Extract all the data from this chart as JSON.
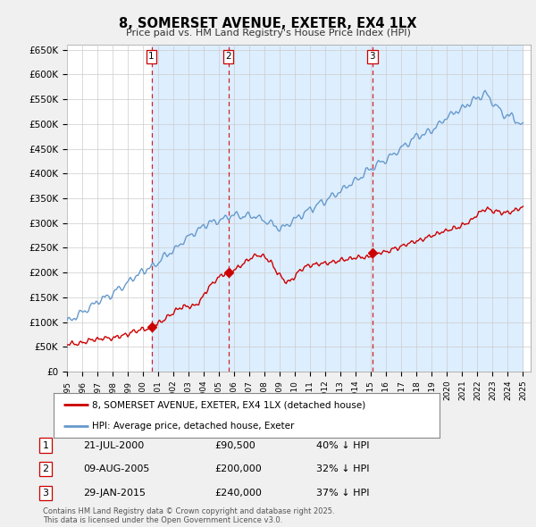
{
  "title": "8, SOMERSET AVENUE, EXETER, EX4 1LX",
  "subtitle": "Price paid vs. HM Land Registry's House Price Index (HPI)",
  "background_color": "#f0f0f0",
  "plot_bg_color": "#ffffff",
  "plot_fill_color": "#ddeeff",
  "ylim": [
    0,
    660000
  ],
  "yticks": [
    0,
    50000,
    100000,
    150000,
    200000,
    250000,
    300000,
    350000,
    400000,
    450000,
    500000,
    550000,
    600000,
    650000
  ],
  "ytick_labels": [
    "£0",
    "£50K",
    "£100K",
    "£150K",
    "£200K",
    "£250K",
    "£300K",
    "£350K",
    "£400K",
    "£450K",
    "£500K",
    "£550K",
    "£600K",
    "£650K"
  ],
  "sale_year_vals": [
    2000.558,
    2005.608,
    2015.075
  ],
  "sale_prices": [
    90500,
    200000,
    240000
  ],
  "sale_labels": [
    "1",
    "2",
    "3"
  ],
  "legend_entries": [
    "8, SOMERSET AVENUE, EXETER, EX4 1LX (detached house)",
    "HPI: Average price, detached house, Exeter"
  ],
  "table_entries": [
    {
      "label": "1",
      "date": "21-JUL-2000",
      "price": "£90,500",
      "hpi": "40% ↓ HPI"
    },
    {
      "label": "2",
      "date": "09-AUG-2005",
      "price": "£200,000",
      "hpi": "32% ↓ HPI"
    },
    {
      "label": "3",
      "date": "29-JAN-2015",
      "price": "£240,000",
      "hpi": "37% ↓ HPI"
    }
  ],
  "footer": "Contains HM Land Registry data © Crown copyright and database right 2025.\nThis data is licensed under the Open Government Licence v3.0.",
  "red_line_color": "#cc0000",
  "blue_line_color": "#6699cc",
  "vline_color": "#cc0000",
  "grid_color": "#cccccc"
}
